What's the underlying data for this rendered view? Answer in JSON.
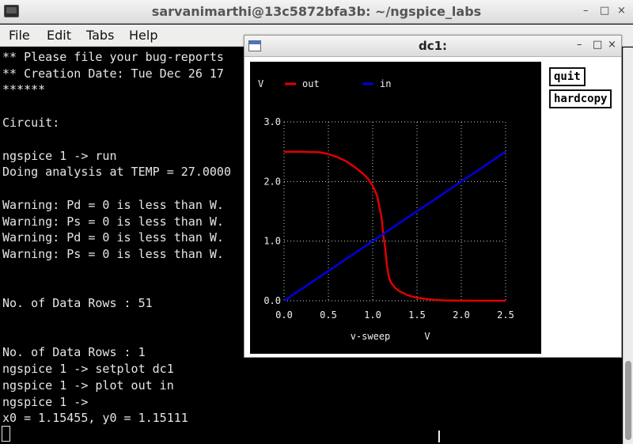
{
  "terminal": {
    "title": "sarvanimarthi@13c5872bfa3b: ~/ngspice_labs",
    "window_buttons": {
      "minimize": "–",
      "maximize": "□",
      "close": "×"
    },
    "menu": [
      "File",
      "Edit",
      "Tabs",
      "Help"
    ],
    "lines": [
      "** Please file your bug-reports",
      "** Creation Date: Tue Dec 26 17",
      "******",
      "",
      "Circuit:",
      "",
      "ngspice 1 -> run",
      "Doing analysis at TEMP = 27.0000",
      "",
      "Warning: Pd = 0 is less than W.",
      "Warning: Ps = 0 is less than W.",
      "Warning: Pd = 0 is less than W.",
      "Warning: Ps = 0 is less than W.",
      "",
      "",
      "No. of Data Rows : 51",
      "",
      "",
      "No. of Data Rows : 1",
      "ngspice 1 -> setplot dc1",
      "ngspice 1 -> plot out in",
      "ngspice 1 ->",
      "x0 = 1.15455, y0 = 1.15111"
    ]
  },
  "plot_window": {
    "title": "dc1:",
    "window_buttons": {
      "minimize": "–",
      "maximize": "□",
      "close": "×"
    },
    "buttons": {
      "quit": "quit",
      "hardcopy": "hardcopy"
    }
  },
  "chart_data": {
    "type": "line",
    "ylabel": "V",
    "xlabel": "v-sweep",
    "xunit": "V",
    "xlim": [
      0,
      2.5
    ],
    "ylim": [
      0,
      3.0
    ],
    "xticks": [
      "0.0",
      "0.5",
      "1.0",
      "1.5",
      "2.0",
      "2.5"
    ],
    "yticks": [
      "0.0",
      "1.0",
      "2.0",
      "3.0"
    ],
    "grid": true,
    "legend_position": "top",
    "series": [
      {
        "name": "out",
        "color": "#e00000",
        "x": [
          0.0,
          0.2,
          0.4,
          0.5,
          0.6,
          0.7,
          0.8,
          0.9,
          0.95,
          1.0,
          1.05,
          1.1,
          1.12,
          1.14,
          1.16,
          1.18,
          1.2,
          1.25,
          1.3,
          1.4,
          1.5,
          1.6,
          1.7,
          1.8,
          1.9,
          2.0,
          2.2,
          2.5
        ],
        "y": [
          2.5,
          2.5,
          2.49,
          2.46,
          2.41,
          2.34,
          2.24,
          2.12,
          2.04,
          1.93,
          1.76,
          1.4,
          1.1,
          0.9,
          0.6,
          0.42,
          0.32,
          0.22,
          0.16,
          0.09,
          0.05,
          0.03,
          0.015,
          0.007,
          0.003,
          0.001,
          0.0,
          0.0
        ]
      },
      {
        "name": "in",
        "color": "#0000e0",
        "x": [
          0.0,
          2.5
        ],
        "y": [
          0.0,
          2.5
        ]
      }
    ]
  }
}
